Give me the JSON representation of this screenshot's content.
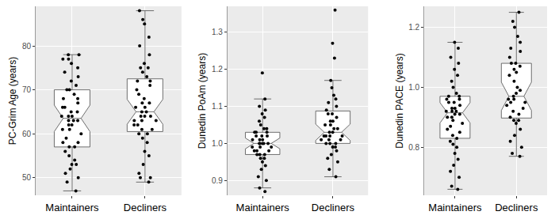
{
  "chart_data": [
    {
      "type": "box",
      "y_label": "PC-Grim Age (years)",
      "categories": [
        "Maintainers",
        "Decliners"
      ],
      "values": [
        [
          47,
          49,
          50,
          51,
          52,
          53,
          53,
          54,
          55,
          56,
          57,
          57,
          58,
          58,
          59,
          60,
          61,
          61,
          62,
          62,
          63,
          63,
          63,
          64,
          64,
          64,
          65,
          65,
          66,
          66,
          67,
          68,
          68,
          69,
          70,
          70,
          71,
          72,
          73,
          74,
          75,
          76,
          77,
          77,
          78,
          78
        ],
        [
          49,
          50,
          50,
          51,
          53,
          55,
          56,
          58,
          59,
          60,
          60,
          61,
          61,
          62,
          62,
          63,
          63,
          63,
          64,
          64,
          64,
          65,
          65,
          66,
          66,
          67,
          67,
          68,
          69,
          70,
          71,
          72,
          72,
          73,
          74,
          75,
          75,
          76,
          78,
          80,
          82,
          85,
          86,
          88
        ]
      ],
      "color": "#000000",
      "marker": "circle",
      "ylim": [
        46,
        89
      ],
      "yticks": [
        50,
        60,
        70,
        80
      ],
      "grid": true
    },
    {
      "type": "box",
      "y_label": "Dunedin PoAm (years)",
      "categories": [
        "Maintainers",
        "Decliners"
      ],
      "values": [
        [
          0.87,
          0.88,
          0.9,
          0.91,
          0.93,
          0.94,
          0.95,
          0.96,
          0.96,
          0.97,
          0.97,
          0.97,
          0.98,
          0.98,
          0.98,
          0.99,
          0.99,
          0.99,
          1.0,
          1.0,
          1.0,
          1.0,
          1.0,
          1.01,
          1.01,
          1.01,
          1.02,
          1.02,
          1.02,
          1.03,
          1.03,
          1.03,
          1.04,
          1.04,
          1.05,
          1.06,
          1.07,
          1.08,
          1.09,
          1.1,
          1.12,
          1.19
        ],
        [
          0.91,
          0.93,
          0.95,
          0.96,
          0.97,
          0.98,
          0.99,
          0.99,
          1.0,
          1.0,
          1.0,
          1.01,
          1.01,
          1.01,
          1.02,
          1.02,
          1.02,
          1.02,
          1.03,
          1.03,
          1.04,
          1.04,
          1.05,
          1.05,
          1.06,
          1.06,
          1.07,
          1.08,
          1.08,
          1.09,
          1.1,
          1.11,
          1.12,
          1.13,
          1.15,
          1.17,
          1.23,
          1.27,
          1.36
        ]
      ],
      "color": "#000000",
      "marker": "circle",
      "ylim": [
        0.86,
        1.37
      ],
      "yticks": [
        0.9,
        {
          "value": 1,
          "label": "1.0"
        },
        1.1,
        1.2,
        1.3
      ],
      "grid": true
    },
    {
      "type": "box",
      "y_label": "Dunedin PACE (years)",
      "categories": [
        "Maintainers",
        "Decliners"
      ],
      "values": [
        [
          0.66,
          0.67,
          0.7,
          0.72,
          0.74,
          0.76,
          0.78,
          0.8,
          0.81,
          0.82,
          0.83,
          0.84,
          0.85,
          0.86,
          0.87,
          0.88,
          0.89,
          0.9,
          0.9,
          0.91,
          0.91,
          0.92,
          0.92,
          0.92,
          0.93,
          0.93,
          0.94,
          0.95,
          0.95,
          0.96,
          0.96,
          0.97,
          0.97,
          0.98,
          1.0,
          1.02,
          1.04,
          1.06,
          1.08,
          1.1,
          1.13,
          1.15
        ],
        [
          0.77,
          0.78,
          0.8,
          0.82,
          0.84,
          0.86,
          0.88,
          0.89,
          0.89,
          0.9,
          0.91,
          0.92,
          0.93,
          0.94,
          0.95,
          0.95,
          0.96,
          0.96,
          0.97,
          0.98,
          0.99,
          1.0,
          1.02,
          1.04,
          1.05,
          1.06,
          1.07,
          1.08,
          1.08,
          1.1,
          1.12,
          1.13,
          1.15,
          1.17,
          1.2,
          1.22,
          1.25
        ]
      ],
      "color": "#000000",
      "marker": "circle",
      "ylim": [
        0.64,
        1.27
      ],
      "yticks": [
        0.8,
        {
          "value": 1,
          "label": "1.0"
        },
        1.2
      ],
      "grid": true
    }
  ]
}
